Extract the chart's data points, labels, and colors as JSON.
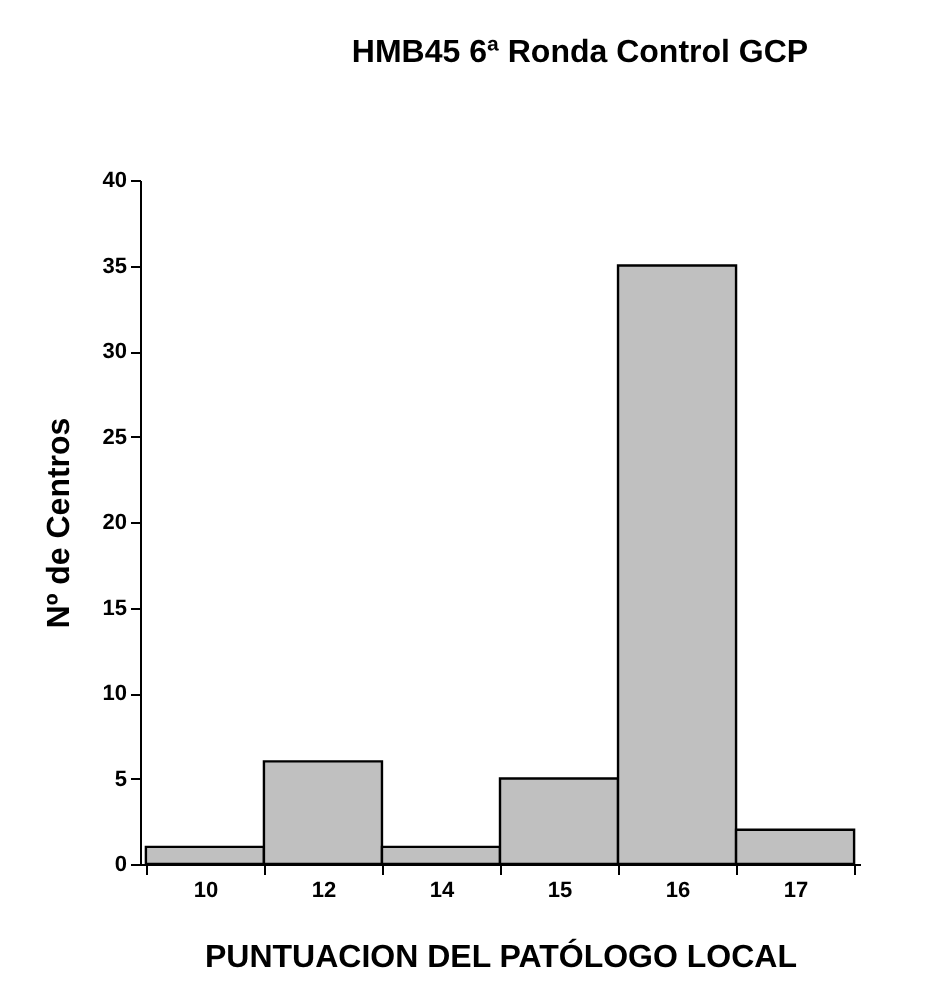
{
  "chart_data": {
    "type": "bar",
    "title": "HMB45 6ª Ronda Control GCP",
    "xlabel": "PUNTUACION DEL PATÓLOGO LOCAL",
    "ylabel": "Nº de Centros",
    "categories": [
      "10",
      "12",
      "14",
      "15",
      "16",
      "17"
    ],
    "values": [
      1,
      6,
      1,
      5,
      35,
      2
    ],
    "color": "#c0c0c0",
    "ylim": [
      0,
      40
    ],
    "yticks": [
      0,
      5,
      10,
      15,
      20,
      25,
      30,
      35,
      40
    ],
    "grid": false
  }
}
